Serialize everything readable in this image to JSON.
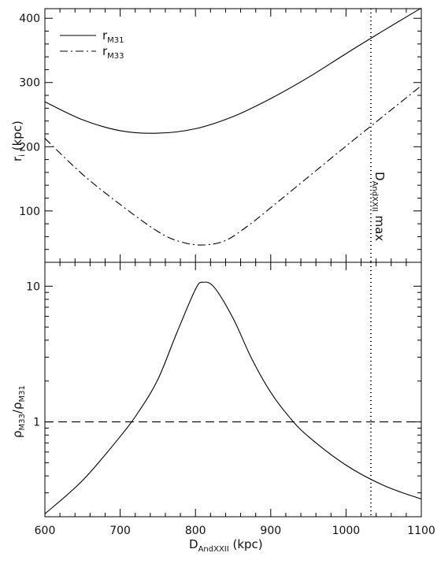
{
  "chart_data": [
    {
      "type": "line",
      "panel": "top",
      "ylabel": {
        "main": "r",
        "sub": "i",
        "rest": " (kpc)"
      },
      "xlim": [
        600,
        1100
      ],
      "ylim": [
        20,
        415
      ],
      "yticks": [
        100,
        200,
        300,
        400
      ],
      "legend_position": "top-left",
      "series": [
        {
          "name": "M31",
          "legend": {
            "main": "r",
            "sub": "M31"
          },
          "style": "solid",
          "x": [
            600,
            650,
            700,
            750,
            800,
            850,
            900,
            950,
            1000,
            1050,
            1100
          ],
          "y": [
            270,
            242,
            225,
            221,
            228,
            247,
            275,
            308,
            345,
            381,
            416
          ]
        },
        {
          "name": "M33",
          "legend": {
            "main": "r",
            "sub": "M33"
          },
          "style": "dash-dot",
          "x": [
            600,
            650,
            700,
            750,
            780,
            810,
            840,
            870,
            900,
            950,
            1000,
            1050,
            1100
          ],
          "y": [
            213,
            157,
            110,
            68,
            52,
            47,
            54,
            77,
            105,
            153,
            201,
            248,
            295
          ]
        }
      ],
      "vline": {
        "x": 1033,
        "style": "dotted",
        "label": {
          "main": "D",
          "sub": "AndXXII",
          "rest": " max"
        }
      }
    },
    {
      "type": "line",
      "panel": "bottom",
      "ylabel": {
        "rho": "ρ",
        "sub_num": "M33",
        "sep": "/",
        "sub_den": "M31"
      },
      "ylog": true,
      "xlim": [
        600,
        1100
      ],
      "ylim": [
        0.2,
        15
      ],
      "yticks": [
        1,
        10
      ],
      "ytick_labels": [
        "1",
        "10"
      ],
      "xticks": [
        600,
        700,
        800,
        900,
        1000,
        1100
      ],
      "xlabel": {
        "main": "D",
        "sub": "AndXXII",
        "rest": " (kpc)"
      },
      "series": [
        {
          "name": "ratio",
          "style": "solid",
          "x": [
            600,
            650,
            700,
            725,
            750,
            775,
            800,
            810,
            825,
            850,
            875,
            900,
            925,
            950,
            1000,
            1050,
            1100
          ],
          "y": [
            0.21,
            0.37,
            0.78,
            1.2,
            2.05,
            4.5,
            9.5,
            10.7,
            9.8,
            5.8,
            2.9,
            1.65,
            1.08,
            0.78,
            0.48,
            0.34,
            0.27
          ]
        }
      ],
      "hline": {
        "y": 1,
        "style": "dashed"
      },
      "vline": {
        "x": 1033,
        "style": "dotted"
      }
    }
  ]
}
